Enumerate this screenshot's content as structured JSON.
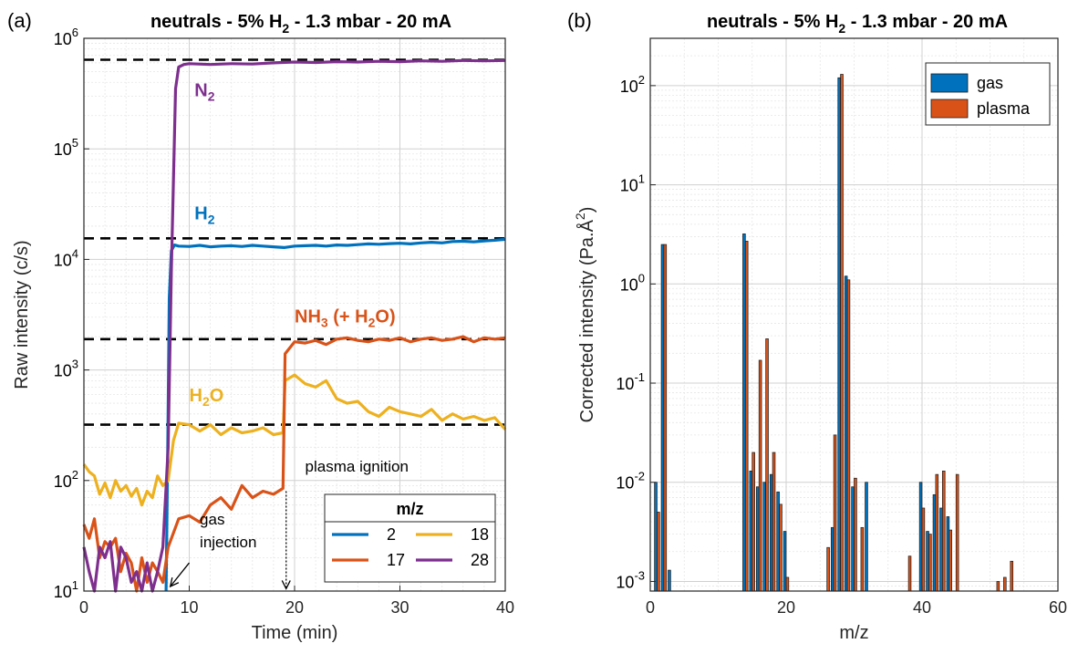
{
  "chart_data": [
    {
      "panel": "(a)",
      "type": "line",
      "title": {
        "pre": "neutrals -  5% H",
        "sub": "2",
        "post": " - 1.3 mbar - 20 mA"
      },
      "xlabel": "Time (min)",
      "ylabel": "Raw intensity (c/s)",
      "xlim": [
        0,
        40
      ],
      "ylim": [
        10,
        1000000
      ],
      "yscale": "log",
      "grid": true,
      "x_ticks": [
        0,
        10,
        20,
        30,
        40
      ],
      "x_tick_labels": [
        "0",
        "10",
        "20",
        "30",
        "40"
      ],
      "y_ticks": [
        {
          "value": 10,
          "base": "10",
          "exp": "1"
        },
        {
          "value": 100,
          "base": "10",
          "exp": "2"
        },
        {
          "value": 1000,
          "base": "10",
          "exp": "3"
        },
        {
          "value": 10000,
          "base": "10",
          "exp": "4"
        },
        {
          "value": 100000,
          "base": "10",
          "exp": "5"
        },
        {
          "value": 1000000,
          "base": "10",
          "exp": "6"
        }
      ],
      "legend": {
        "title": "m/z",
        "location": "bottom-right",
        "entries": [
          "2",
          "18",
          "17",
          "28"
        ]
      },
      "reference_lines": [
        640000,
        15500,
        1900,
        320
      ],
      "series": [
        {
          "name": "2",
          "color": "#0072BD",
          "x": [
            7.8,
            7.95,
            8.1,
            8.3,
            8.6,
            9,
            10,
            11,
            12,
            13,
            14,
            15,
            16,
            17,
            18,
            19,
            20,
            21,
            22,
            23,
            24,
            25,
            26,
            27,
            28,
            29,
            30,
            31,
            32,
            33,
            34,
            35,
            36,
            37,
            38,
            39,
            40
          ],
          "y": [
            10,
            150,
            4500,
            12000,
            13500,
            13200,
            13100,
            13400,
            13000,
            13200,
            13300,
            13100,
            13400,
            13200,
            13000,
            12800,
            13200,
            13300,
            13400,
            13200,
            13500,
            13400,
            13600,
            13800,
            13700,
            13900,
            14000,
            13800,
            14100,
            14300,
            14100,
            14500,
            14600,
            14400,
            14700,
            14900,
            15200
          ]
        },
        {
          "name": "18",
          "color": "#EDB120",
          "x": [
            0,
            0.5,
            1,
            1.5,
            2,
            2.5,
            3,
            3.5,
            4,
            4.5,
            5,
            5.5,
            6,
            6.5,
            7,
            7.5,
            8,
            8.5,
            9,
            10,
            11,
            12,
            13,
            14,
            15,
            16,
            17,
            18,
            18.9,
            19.1,
            20,
            21,
            22,
            23,
            24,
            25,
            26,
            27,
            28,
            29,
            30,
            31,
            32,
            33,
            34,
            35,
            36,
            37,
            38,
            39,
            40
          ],
          "y": [
            140,
            120,
            110,
            75,
            95,
            70,
            100,
            80,
            90,
            72,
            85,
            60,
            80,
            70,
            110,
            90,
            100,
            230,
            330,
            320,
            280,
            320,
            260,
            300,
            270,
            280,
            300,
            260,
            270,
            800,
            900,
            750,
            700,
            800,
            550,
            500,
            520,
            420,
            380,
            460,
            420,
            400,
            380,
            440,
            350,
            400,
            360,
            380,
            350,
            370,
            290
          ]
        },
        {
          "name": "17",
          "color": "#D95319",
          "x": [
            0,
            0.5,
            1,
            1.5,
            2,
            2.5,
            3,
            3.5,
            4,
            4.5,
            5,
            5.5,
            6,
            6.5,
            7,
            7.5,
            8,
            9,
            10,
            11,
            12,
            13,
            14,
            15,
            16,
            17,
            18,
            18.9,
            19.1,
            20,
            21,
            22,
            23,
            24,
            25,
            26,
            27,
            28,
            29,
            30,
            31,
            32,
            33,
            34,
            35,
            36,
            37,
            38,
            39,
            40
          ],
          "y": [
            40,
            30,
            45,
            20,
            28,
            25,
            30,
            15,
            22,
            18,
            10,
            20,
            12,
            18,
            15,
            12,
            25,
            45,
            48,
            42,
            60,
            70,
            55,
            90,
            70,
            80,
            75,
            85,
            1400,
            1800,
            1750,
            1850,
            1700,
            1900,
            1950,
            1850,
            1800,
            1900,
            1850,
            1950,
            1800,
            1900,
            1950,
            1850,
            1900,
            2000,
            1800,
            1950,
            1900,
            1950
          ]
        },
        {
          "name": "28",
          "color": "#7E2F8E",
          "x": [
            0,
            0.5,
            1,
            1.5,
            2,
            2.5,
            3,
            3.5,
            4,
            4.5,
            5,
            5.5,
            6,
            6.5,
            7,
            7.5,
            8,
            8.3,
            8.7,
            9,
            9.5,
            10,
            12,
            14,
            16,
            18,
            20,
            22,
            24,
            26,
            28,
            30,
            32,
            34,
            36,
            38,
            40
          ],
          "y": [
            25,
            15,
            10,
            25,
            20,
            28,
            10,
            25,
            20,
            12,
            15,
            10,
            18,
            10,
            15,
            25,
            200,
            8000,
            350000,
            550000,
            580000,
            590000,
            580000,
            590000,
            585000,
            600000,
            610000,
            605000,
            615000,
            610000,
            620000,
            615000,
            625000,
            620000,
            630000,
            625000,
            630000
          ]
        }
      ],
      "annotations": [
        {
          "text": "N",
          "sub": "2",
          "color": "#7E2F8E",
          "x": 10.5,
          "y": 300000
        },
        {
          "text": "H",
          "sub": "2",
          "color": "#0072BD",
          "x": 10.5,
          "y": 23000
        },
        {
          "text": "NH",
          "sub": "3",
          "post": " (+ H",
          "sub2": "2",
          "post2": "O)",
          "color": "#D95319",
          "x": 20,
          "y": 2700
        },
        {
          "text": "H",
          "sub": "2",
          "post": "O",
          "color": "#EDB120",
          "x": 10,
          "y": 520
        },
        {
          "text": "plasma ignition",
          "color": "#000000",
          "x": 21,
          "y": 120
        },
        {
          "text": "gas",
          "color": "#000000",
          "x": 11,
          "y": 40
        },
        {
          "text": "injection",
          "color": "#000000",
          "x": 11,
          "y": 25
        }
      ],
      "arrows": [
        {
          "from": [
            19.2,
            80
          ],
          "to": [
            19.2,
            10.5
          ],
          "style": "dotted"
        },
        {
          "from": [
            10,
            18
          ],
          "to": [
            8.2,
            11
          ]
        }
      ]
    },
    {
      "panel": "(b)",
      "type": "bar",
      "title": {
        "pre": "neutrals -  5% H",
        "sub": "2",
        "post": " - 1.3 mbar - 20 mA"
      },
      "xlabel": "m/z",
      "ylabel": {
        "pre": "Corrected intensity (Pa.",
        "accent_char": "A",
        "mid": "",
        "exp": "2",
        "post": ")"
      },
      "xlim": [
        0,
        60
      ],
      "ylim": [
        0.0008,
        300
      ],
      "yscale": "log",
      "grid": true,
      "x_ticks": [
        0,
        20,
        40,
        60
      ],
      "x_tick_labels": [
        "0",
        "20",
        "40",
        "60"
      ],
      "y_ticks": [
        {
          "value": 0.001,
          "base": "10",
          "exp": "-3"
        },
        {
          "value": 0.01,
          "base": "10",
          "exp": "-2"
        },
        {
          "value": 0.1,
          "base": "10",
          "exp": "-1"
        },
        {
          "value": 1,
          "base": "10",
          "exp": "0"
        },
        {
          "value": 10,
          "base": "10",
          "exp": "1"
        },
        {
          "value": 100,
          "base": "10",
          "exp": "2"
        }
      ],
      "legend": {
        "location": "top-right",
        "entries": [
          "gas",
          "plasma"
        ]
      },
      "series": [
        {
          "name": "gas",
          "color": "#0072BD",
          "x": [
            1,
            2,
            3,
            14,
            15,
            16,
            17,
            18,
            19,
            20,
            27,
            28,
            29,
            30,
            32,
            40,
            41,
            42,
            43,
            44
          ],
          "y": [
            0.01,
            2.5,
            0.0013,
            3.2,
            0.013,
            0.009,
            0.01,
            0.012,
            0.008,
            0.0032,
            0.0035,
            120,
            1.2,
            0.009,
            0.01,
            0.01,
            0.0032,
            0.0075,
            0.0055,
            0.0045
          ]
        },
        {
          "name": "plasma",
          "color": "#D95319",
          "x": [
            1,
            2,
            14,
            15,
            16,
            17,
            18,
            19,
            20,
            26,
            27,
            28,
            29,
            30,
            31,
            38,
            40,
            41,
            42,
            43,
            44,
            45,
            51,
            52,
            53
          ],
          "y": [
            0.005,
            2.5,
            2.7,
            0.02,
            0.17,
            0.28,
            0.02,
            0.006,
            0.0011,
            0.0022,
            0.03,
            130,
            1.1,
            0.011,
            0.0035,
            0.0018,
            0.0055,
            0.003,
            0.012,
            0.013,
            0.0033,
            0.012,
            0.001,
            0.0011,
            0.0016
          ]
        }
      ]
    }
  ]
}
